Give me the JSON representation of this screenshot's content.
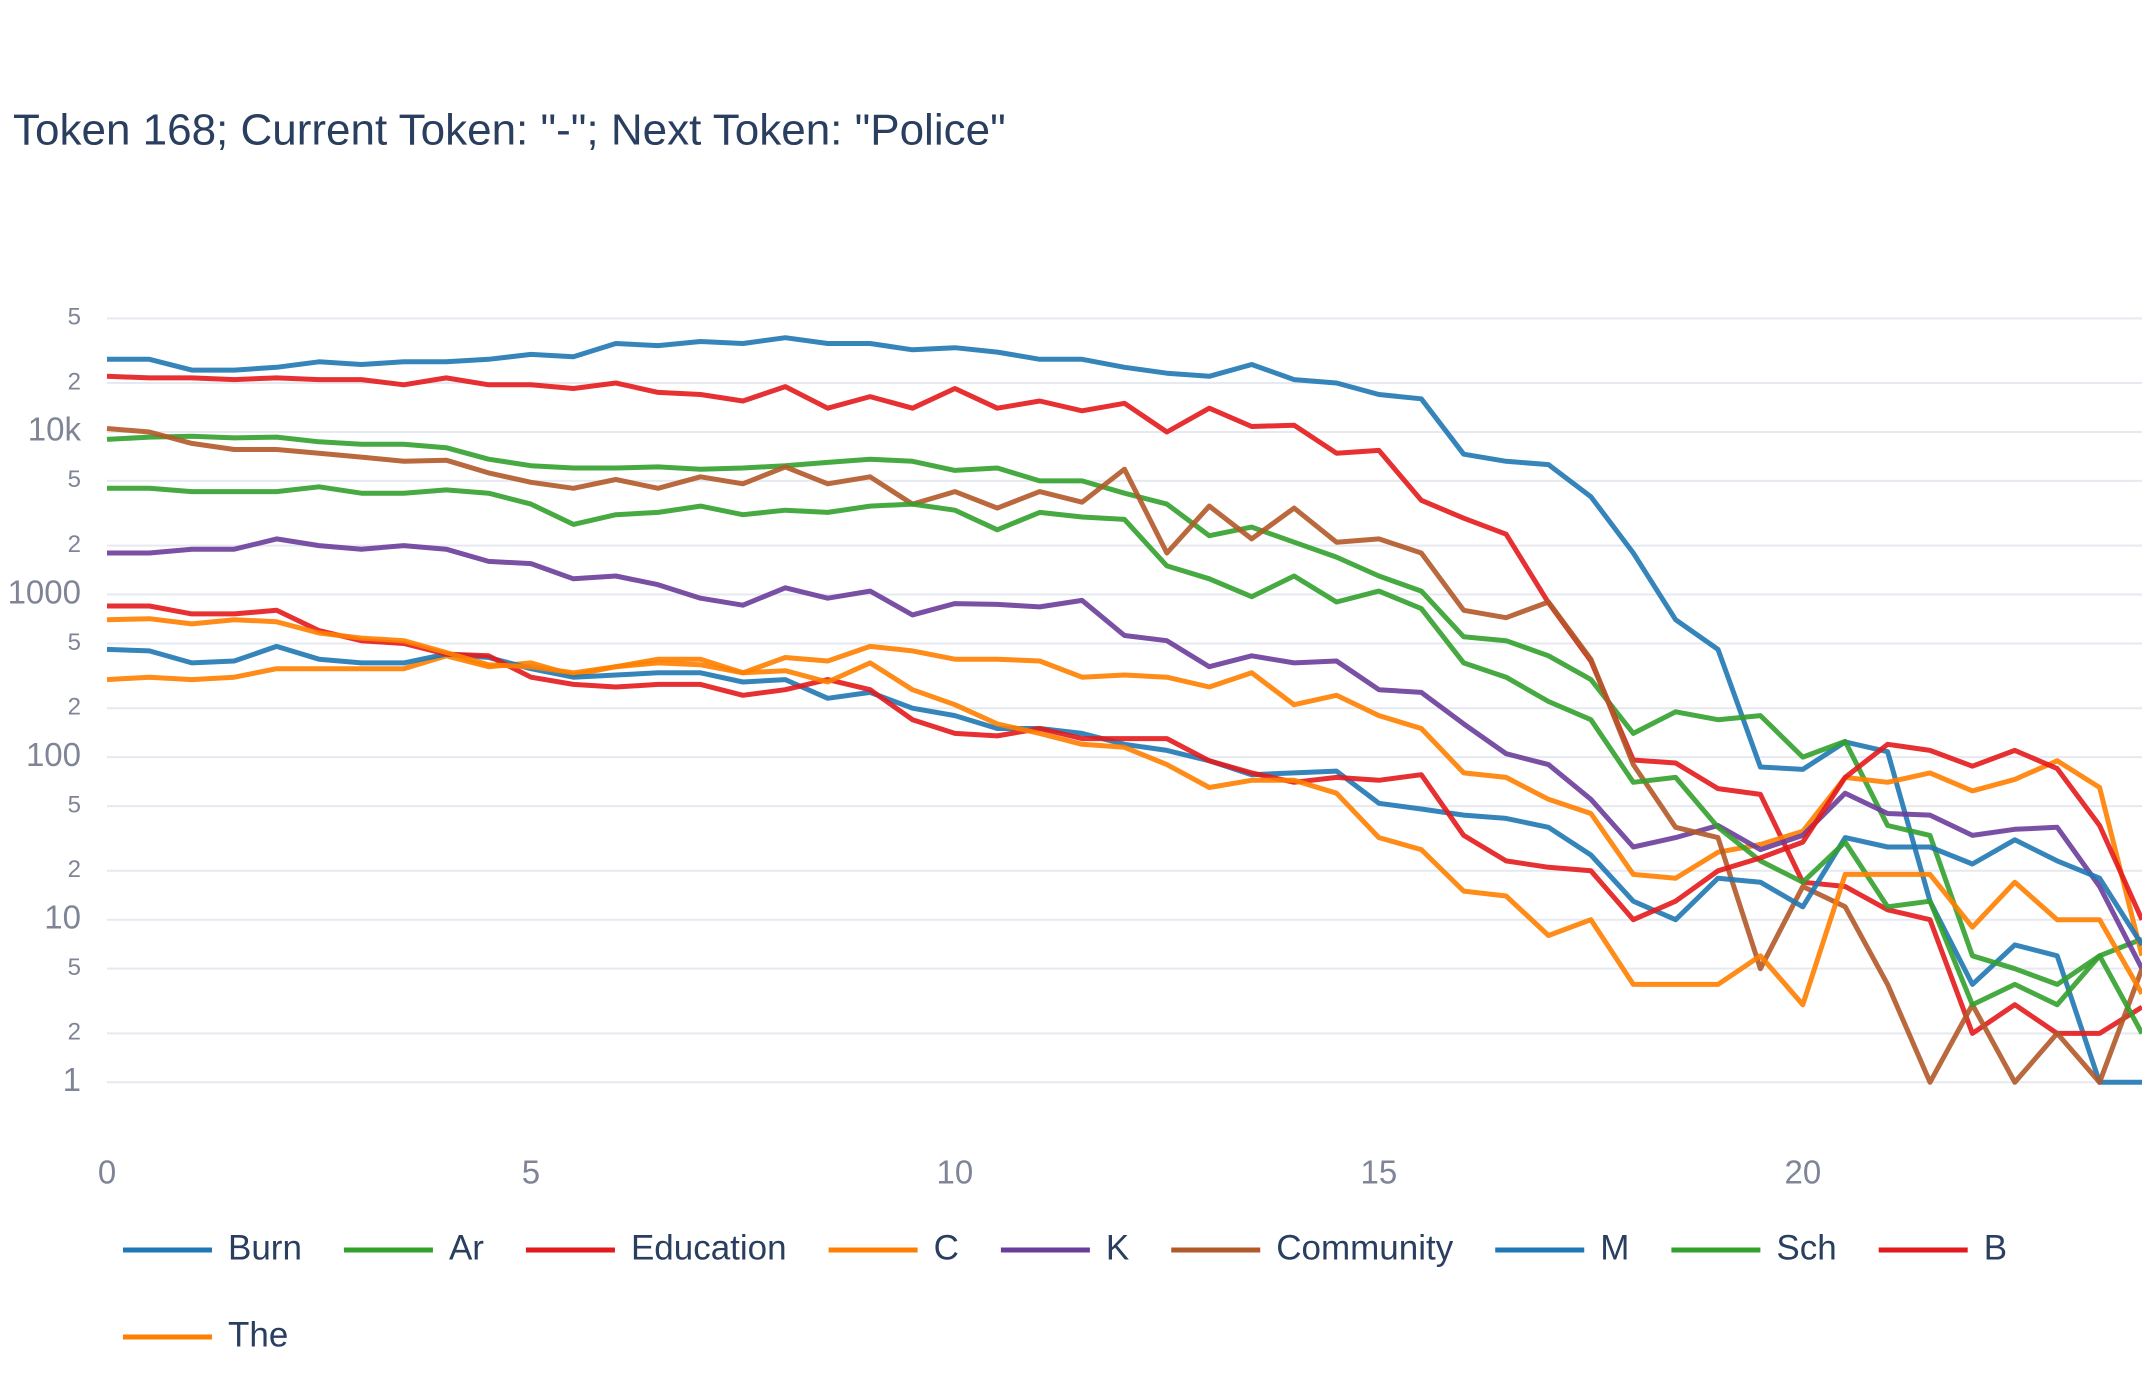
{
  "chart_data": {
    "type": "line",
    "title": "Token 168; Current Token: \"-\"; Next Token: \"Police\"",
    "yscale": "log",
    "grid": true,
    "legend": "bottom",
    "xlim": [
      0,
      24
    ],
    "xticks": [
      0,
      5,
      10,
      15,
      20
    ],
    "ylim": [
      0.4,
      95000
    ],
    "yticks": [
      1,
      2,
      5,
      10,
      {
        "value": 20,
        "label": "2"
      },
      {
        "value": 50,
        "label": "5"
      },
      100,
      {
        "value": 200,
        "label": "2"
      },
      {
        "value": 500,
        "label": "5"
      },
      1000,
      {
        "value": 2000,
        "label": "2"
      },
      {
        "value": 5000,
        "label": "5"
      },
      {
        "value": 10000,
        "label": "10k"
      },
      {
        "value": 20000,
        "label": "2"
      },
      {
        "value": 50000,
        "label": "5"
      }
    ],
    "x": [
      0,
      0.5,
      1,
      1.5,
      2,
      2.5,
      3,
      3.5,
      4,
      4.5,
      5,
      5.5,
      6,
      6.5,
      7,
      7.5,
      8,
      8.5,
      9,
      9.5,
      10,
      10.5,
      11,
      11.5,
      12,
      12.5,
      13,
      13.5,
      14,
      14.5,
      15,
      15.5,
      16,
      16.5,
      17,
      17.5,
      18,
      18.5,
      19,
      19.5,
      20,
      20.5,
      21,
      21.5,
      22,
      22.5,
      23,
      23.5,
      24
    ],
    "series": [
      {
        "name": "Burn",
        "color": "#1f78b4",
        "values": [
          28000,
          28000,
          24000,
          24000,
          25000,
          27000,
          26000,
          27000,
          27000,
          28000,
          30000,
          29000,
          35000,
          34000,
          36000,
          35000,
          38000,
          35000,
          35000,
          32000,
          33000,
          31000,
          28000,
          28000,
          25000,
          23000,
          22000,
          26000,
          21000,
          20000,
          17000,
          16000,
          7300,
          6600,
          6300,
          4000,
          1800,
          700,
          460,
          87,
          84,
          124,
          108,
          13,
          4,
          7,
          6,
          1,
          1
        ]
      },
      {
        "name": "Ar",
        "color": "#33a02c",
        "values": [
          9000,
          9300,
          9400,
          9200,
          9300,
          8700,
          8400,
          8400,
          8000,
          6800,
          6200,
          6000,
          6000,
          6100,
          5900,
          6000,
          6200,
          6500,
          6800,
          6600,
          5800,
          6000,
          5000,
          5000,
          4200,
          3600,
          2300,
          2600,
          2100,
          1700,
          1300,
          1050,
          550,
          520,
          420,
          300,
          140,
          190,
          170,
          180,
          100,
          125,
          38,
          33,
          6,
          5,
          4,
          6,
          7.6
        ]
      },
      {
        "name": "Education",
        "color": "#e31a1c",
        "values": [
          22000,
          21500,
          21500,
          21000,
          21500,
          21000,
          21000,
          19500,
          21500,
          19500,
          19500,
          18500,
          20000,
          17500,
          17000,
          15500,
          19000,
          14000,
          16500,
          14000,
          18500,
          14000,
          15500,
          13500,
          15000,
          10000,
          14000,
          10800,
          11000,
          7400,
          7700,
          3800,
          2950,
          2350,
          890,
          390,
          96,
          92,
          64,
          59,
          17,
          16,
          11.5,
          10,
          2,
          3,
          2,
          2,
          2.9
        ]
      },
      {
        "name": "C",
        "color": "#ff7f00",
        "values": [
          300,
          310,
          300,
          310,
          350,
          350,
          350,
          350,
          420,
          360,
          380,
          320,
          360,
          400,
          400,
          330,
          410,
          390,
          480,
          450,
          400,
          400,
          390,
          310,
          320,
          310,
          270,
          330,
          210,
          240,
          180,
          150,
          80,
          75,
          55,
          45,
          19,
          18,
          26,
          29,
          35,
          75,
          70,
          80,
          62,
          73,
          95,
          65,
          6
        ]
      },
      {
        "name": "K",
        "color": "#6a3d9a",
        "values": [
          1800,
          1800,
          1900,
          1900,
          2200,
          2000,
          1900,
          2000,
          1900,
          1600,
          1550,
          1250,
          1300,
          1150,
          950,
          860,
          1100,
          950,
          1050,
          750,
          880,
          870,
          840,
          920,
          560,
          520,
          360,
          420,
          380,
          390,
          260,
          250,
          160,
          105,
          90,
          55,
          28,
          32,
          38,
          27,
          33,
          60,
          45,
          44,
          33,
          36,
          37,
          16,
          5
        ]
      },
      {
        "name": "Community",
        "color": "#b15928",
        "values": [
          10500,
          10000,
          8500,
          7800,
          7800,
          7400,
          7000,
          6600,
          6700,
          5600,
          4900,
          4500,
          5100,
          4500,
          5300,
          4800,
          6100,
          4800,
          5300,
          3600,
          4300,
          3400,
          4300,
          3700,
          5900,
          1800,
          3500,
          2200,
          3400,
          2100,
          2200,
          1800,
          800,
          720,
          900,
          400,
          90,
          37,
          32,
          5,
          16,
          12,
          4,
          1,
          3,
          1,
          2,
          1,
          5
        ]
      },
      {
        "name": "M",
        "color": "#1f78b4",
        "values": [
          460,
          450,
          380,
          390,
          480,
          400,
          380,
          380,
          430,
          410,
          350,
          310,
          320,
          330,
          330,
          290,
          300,
          230,
          250,
          200,
          180,
          150,
          150,
          140,
          120,
          110,
          95,
          78,
          80,
          82,
          52,
          48,
          44,
          42,
          37,
          25,
          13,
          10,
          18,
          17,
          12,
          32,
          28,
          28,
          22,
          31,
          23,
          18,
          7
        ]
      },
      {
        "name": "Sch",
        "color": "#33a02c",
        "values": [
          4500,
          4500,
          4300,
          4300,
          4300,
          4600,
          4200,
          4200,
          4400,
          4200,
          3600,
          2700,
          3100,
          3200,
          3500,
          3100,
          3300,
          3200,
          3500,
          3600,
          3300,
          2500,
          3200,
          3000,
          2900,
          1500,
          1250,
          970,
          1300,
          900,
          1050,
          820,
          380,
          310,
          220,
          170,
          70,
          75,
          37,
          23,
          17,
          30,
          12,
          13,
          3,
          4,
          3,
          6,
          2
        ]
      },
      {
        "name": "B",
        "color": "#e31a1c",
        "values": [
          850,
          850,
          760,
          760,
          800,
          600,
          520,
          500,
          430,
          420,
          310,
          280,
          270,
          280,
          280,
          240,
          260,
          300,
          260,
          170,
          140,
          135,
          150,
          130,
          130,
          130,
          95,
          80,
          70,
          75,
          72,
          78,
          33,
          23,
          21,
          20,
          10,
          13,
          20,
          24,
          30,
          75,
          120,
          110,
          88,
          110,
          85,
          38,
          10
        ]
      },
      {
        "name": "The",
        "color": "#ff7f00",
        "values": [
          700,
          710,
          660,
          700,
          680,
          580,
          540,
          520,
          440,
          370,
          360,
          330,
          360,
          380,
          370,
          330,
          340,
          290,
          380,
          260,
          210,
          160,
          140,
          120,
          115,
          90,
          65,
          72,
          72,
          60,
          32,
          27,
          15,
          14,
          8,
          10,
          4,
          4,
          4,
          6,
          3,
          19,
          19,
          19,
          9,
          17,
          10,
          10,
          3.5
        ]
      }
    ]
  }
}
